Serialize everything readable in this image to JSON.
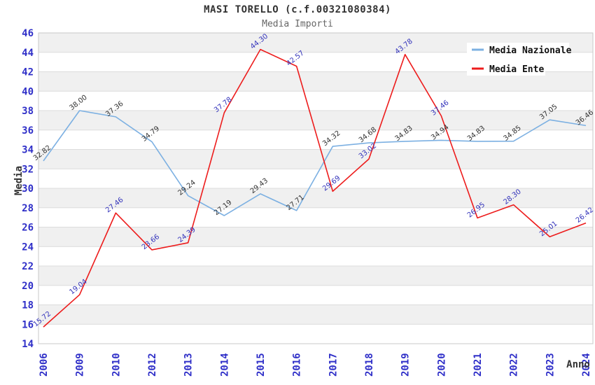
{
  "header": {
    "title": "MASI TORELLO (c.f.00321080384)",
    "subtitle": "Media Importi"
  },
  "chart_data": {
    "type": "line",
    "title": "MASI TORELLO (c.f.00321080384)",
    "subtitle": "Media Importi",
    "xlabel": "Anno",
    "ylabel": "Media",
    "ylim": [
      14,
      46
    ],
    "ytick_step": 2,
    "grid": true,
    "alternating_bands": true,
    "legend_position": "top-right",
    "categories": [
      "2006",
      "2009",
      "2010",
      "2012",
      "2013",
      "2014",
      "2015",
      "2016",
      "2017",
      "2018",
      "2019",
      "2020",
      "2021",
      "2022",
      "2023",
      "2024"
    ],
    "series": [
      {
        "name": "Media Nazionale",
        "color": "#7cb0e2",
        "label_color": "#333333",
        "values": [
          32.82,
          38.0,
          37.36,
          34.79,
          29.24,
          27.19,
          29.43,
          27.71,
          34.32,
          34.68,
          34.83,
          34.94,
          34.83,
          34.85,
          37.05,
          36.46
        ]
      },
      {
        "name": "Media Ente",
        "color": "#ed1c1c",
        "label_color": "#3333bb",
        "values": [
          15.72,
          19.04,
          27.46,
          23.66,
          24.39,
          37.78,
          44.3,
          42.57,
          29.69,
          33.02,
          43.78,
          37.46,
          26.95,
          28.3,
          25.01,
          26.42
        ]
      }
    ]
  },
  "colors": {
    "tick_label": "#2f2fc8",
    "axis_label": "#333333",
    "band_gray": "#f0f0f0",
    "grid_line": "#dcdcdc",
    "plot_border": "#c9c9c9",
    "title": "#333333",
    "subtitle": "#666666",
    "legend_text": "#111111",
    "legend_bg": "#ffffff"
  }
}
